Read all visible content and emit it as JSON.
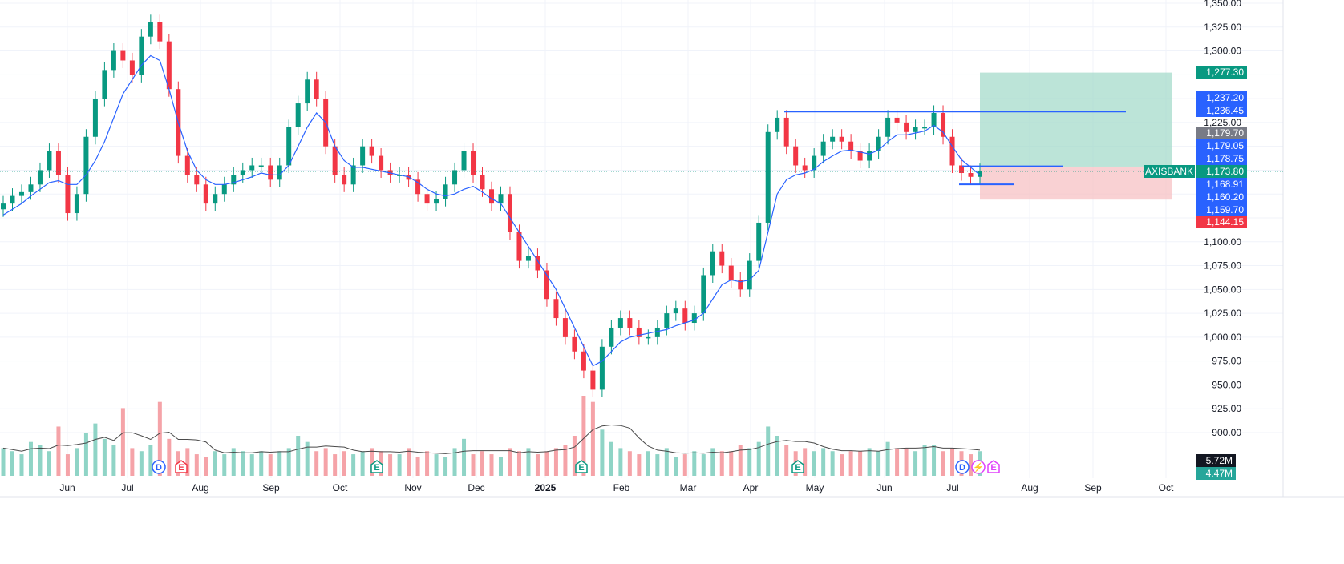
{
  "chart_data": {
    "type": "candlestick",
    "symbol": "AXISBANK",
    "y_axis": {
      "ticks": [
        "1,350.00",
        "1,325.00",
        "1,300.00",
        "1,225.00",
        "1,100.00",
        "1,075.00",
        "1,050.00",
        "1,025.00",
        "1,000.00",
        "975.00",
        "950.00",
        "925.00",
        "900.00"
      ],
      "tick_values": [
        1350,
        1325,
        1300,
        1225,
        1100,
        1075,
        1050,
        1025,
        1000,
        975,
        950,
        925,
        900
      ],
      "range": [
        890,
        1354
      ]
    },
    "x_axis": {
      "labels": [
        "Jun",
        "Jul",
        "Aug",
        "Sep",
        "Oct",
        "Nov",
        "Dec",
        "2025",
        "Feb",
        "Mar",
        "Apr",
        "May",
        "Jun",
        "Jul",
        "Aug",
        "Sep",
        "Oct"
      ],
      "bold": [
        "2025"
      ]
    },
    "price_tags": [
      {
        "label": "1,277.30",
        "value": 1277.3,
        "color": "#089981"
      },
      {
        "label": "1,237.20",
        "value": 1237.2,
        "color": "#2962ff"
      },
      {
        "label": "1,236.45",
        "value": 1236.45,
        "color": "#2962ff"
      },
      {
        "label": "1,179.70",
        "value": 1179.7,
        "color": "#787b86"
      },
      {
        "label": "1,179.05",
        "value": 1179.05,
        "color": "#2962ff"
      },
      {
        "label": "1,178.75",
        "value": 1178.75,
        "color": "#2962ff"
      },
      {
        "label": "1,173.80",
        "value": 1173.8,
        "color": "#089981"
      },
      {
        "label": "1,168.91",
        "value": 1168.91,
        "color": "#2962ff"
      },
      {
        "label": "1,160.20",
        "value": 1160.2,
        "color": "#2962ff"
      },
      {
        "label": "1,159.70",
        "value": 1159.7,
        "color": "#2962ff"
      },
      {
        "label": "1,144.15",
        "value": 1144.15,
        "color": "#f23645"
      }
    ],
    "volume_tags": [
      {
        "label": "5.72M",
        "color": "#131722"
      },
      {
        "label": "4.47M",
        "color": "#26a69a"
      }
    ],
    "symbol_label": {
      "label": "AXISBANK",
      "value": 1173.8,
      "color": "#089981"
    },
    "last_price": 1173.8,
    "horizontal_lines": [
      {
        "value": 1236.45,
        "x_from": "Apr",
        "x_to": "Sep",
        "color": "#2962ff"
      },
      {
        "value": 1179.05,
        "x_from": "Jul",
        "x_to": "Aug",
        "color": "#2962ff"
      },
      {
        "value": 1160.2,
        "x_from": "Jul",
        "x_to": "Jul",
        "color": "#2962ff"
      }
    ],
    "position": {
      "entry": 1178.75,
      "target": 1277.3,
      "stop": 1144.15,
      "profit_color": "#9fd8c8",
      "loss_color": "#f7c1c4"
    },
    "price_series": [
      1140,
      1148,
      1152,
      1160,
      1175,
      1195,
      1170,
      1130,
      1150,
      1210,
      1250,
      1280,
      1300,
      1290,
      1275,
      1315,
      1330,
      1310,
      1260,
      1190,
      1170,
      1160,
      1140,
      1150,
      1160,
      1170,
      1175,
      1180,
      1180,
      1165,
      1180,
      1220,
      1245,
      1270,
      1250,
      1200,
      1170,
      1160,
      1180,
      1200,
      1190,
      1175,
      1170,
      1170,
      1165,
      1150,
      1140,
      1145,
      1160,
      1175,
      1195,
      1170,
      1155,
      1140,
      1150,
      1110,
      1080,
      1085,
      1070,
      1040,
      1020,
      1000,
      985,
      965,
      945,
      990,
      1010,
      1020,
      1010,
      1000,
      1000,
      1010,
      1025,
      1030,
      1015,
      1025,
      1065,
      1090,
      1075,
      1060,
      1050,
      1080,
      1120,
      1215,
      1230,
      1200,
      1180,
      1175,
      1190,
      1205,
      1210,
      1205,
      1195,
      1185,
      1195,
      1210,
      1230,
      1225,
      1215,
      1220,
      1220,
      1235,
      1210,
      1180,
      1172,
      1168,
      1174
    ],
    "moving_average": [
      1128,
      1134,
      1140,
      1148,
      1155,
      1162,
      1164,
      1160,
      1160,
      1170,
      1185,
      1205,
      1230,
      1255,
      1270,
      1285,
      1295,
      1290,
      1260,
      1225,
      1195,
      1175,
      1165,
      1160,
      1160,
      1162,
      1165,
      1168,
      1172,
      1170,
      1170,
      1180,
      1200,
      1220,
      1235,
      1225,
      1200,
      1185,
      1178,
      1178,
      1176,
      1174,
      1172,
      1170,
      1168,
      1162,
      1155,
      1150,
      1148,
      1150,
      1155,
      1158,
      1152,
      1145,
      1140,
      1125,
      1110,
      1095,
      1080,
      1065,
      1050,
      1030,
      1010,
      990,
      970,
      975,
      985,
      995,
      1000,
      1002,
      1004,
      1006,
      1008,
      1012,
      1015,
      1018,
      1025,
      1040,
      1055,
      1060,
      1058,
      1060,
      1070,
      1110,
      1150,
      1165,
      1170,
      1172,
      1176,
      1184,
      1190,
      1195,
      1196,
      1194,
      1192,
      1196,
      1205,
      1212,
      1212,
      1214,
      1216,
      1222,
      1215,
      1200,
      1186,
      1178,
      1170
    ],
    "volume_series": [
      0.9,
      0.8,
      0.7,
      1.1,
      1.0,
      0.8,
      1.6,
      0.7,
      0.9,
      1.4,
      1.7,
      1.2,
      1.0,
      2.2,
      0.9,
      0.8,
      1.0,
      2.4,
      1.2,
      0.8,
      0.9,
      0.7,
      0.6,
      0.8,
      0.7,
      0.9,
      0.8,
      0.7,
      0.8,
      0.7,
      0.8,
      0.9,
      1.3,
      1.1,
      0.8,
      0.9,
      0.7,
      0.8,
      0.7,
      0.8,
      0.9,
      0.8,
      0.7,
      0.7,
      0.9,
      0.6,
      0.8,
      0.7,
      0.6,
      0.9,
      1.2,
      0.7,
      0.8,
      0.7,
      0.6,
      0.9,
      0.8,
      0.9,
      0.7,
      0.8,
      0.9,
      1.0,
      1.3,
      2.6,
      2.4,
      1.5,
      1.1,
      0.9,
      0.8,
      0.7,
      0.8,
      0.7,
      0.9,
      0.6,
      0.7,
      0.8,
      0.7,
      0.9,
      0.8,
      0.8,
      1.0,
      0.9,
      1.1,
      1.6,
      1.3,
      1.0,
      0.8,
      0.9,
      0.8,
      0.9,
      0.8,
      0.7,
      0.8,
      0.8,
      0.9,
      0.8,
      1.1,
      0.9,
      0.9,
      0.8,
      1.0,
      1.0,
      0.8,
      0.9,
      0.8,
      0.7,
      0.8
    ],
    "events": [
      {
        "label": "D",
        "x_near": "Jul",
        "period": "2024",
        "color": "#2962ff"
      },
      {
        "label": "E",
        "x_near": "Aug",
        "period": "2024",
        "color": "#f23645"
      },
      {
        "label": "E",
        "x_near": "Oct",
        "period": "2024",
        "color": "#089981"
      },
      {
        "label": "E",
        "x_near": "2025",
        "period": "2025",
        "color": "#089981"
      },
      {
        "label": "E",
        "x_near": "Apr",
        "period": "2025",
        "color": "#089981"
      },
      {
        "label": "D",
        "x_near": "Jul",
        "period": "2025",
        "color": "#2962ff"
      },
      {
        "label": "⚡",
        "x_near": "Jul",
        "period": "2025",
        "color": "#e040fb"
      },
      {
        "label": "E",
        "x_near": "Jul",
        "period": "2025",
        "color": "#e040fb"
      }
    ]
  }
}
